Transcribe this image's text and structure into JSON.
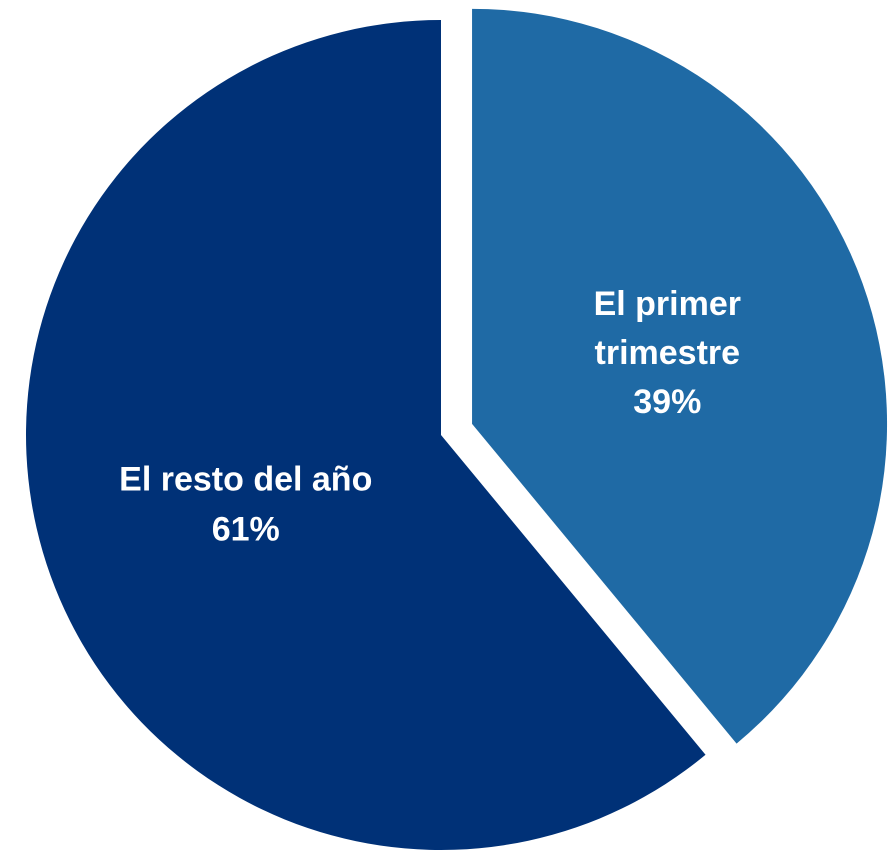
{
  "chart_data": {
    "type": "pie",
    "categories": [
      "El primer trimestre",
      "El resto del año"
    ],
    "values": [
      39,
      61
    ],
    "value_labels": [
      "39%",
      "61%"
    ],
    "colors": [
      "#1f6aa5",
      "#003177"
    ],
    "explode": [
      true,
      false
    ]
  }
}
